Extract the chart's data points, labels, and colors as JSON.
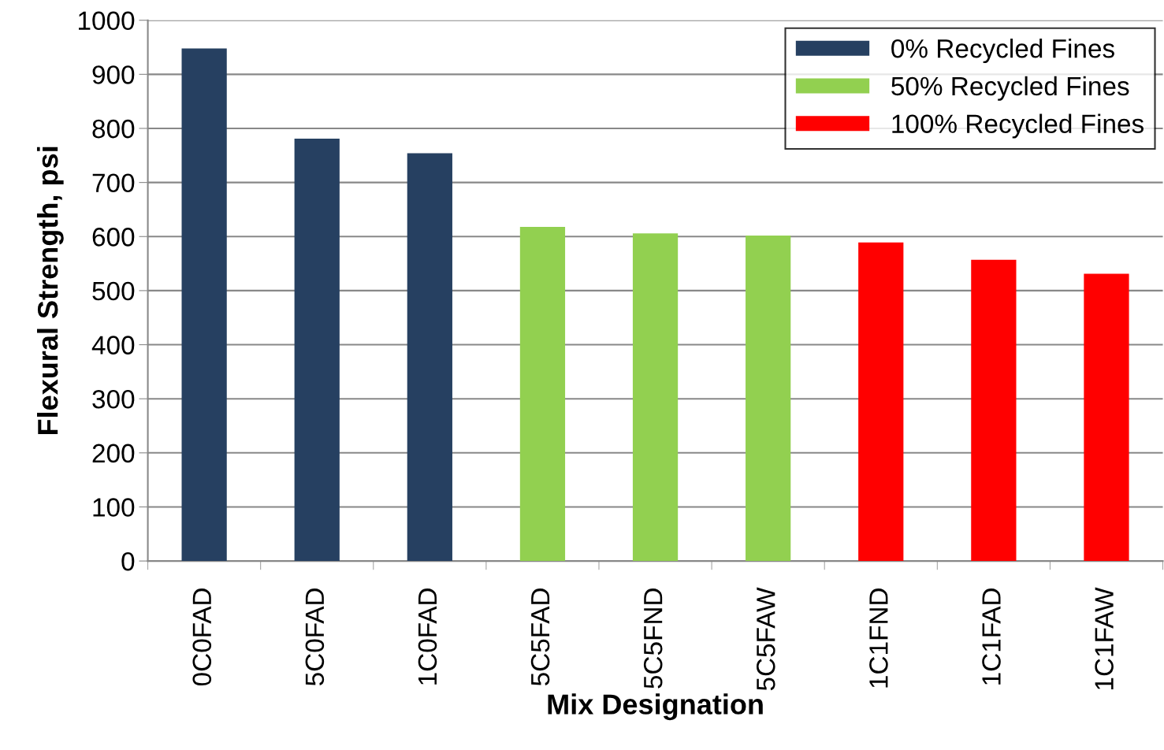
{
  "chart_data": {
    "type": "bar",
    "xlabel": "Mix Designation",
    "ylabel": "Flexural Strength, psi",
    "categories": [
      "0C0FAD",
      "5C0FAD",
      "1C0FAD",
      "5C5FAD",
      "5C5FND",
      "5C5FAW",
      "1C1FND",
      "1C1FAD",
      "1C1FAW"
    ],
    "series": [
      {
        "name": "0% Recycled Fines",
        "color": "#264061",
        "values": [
          948,
          781,
          754,
          null,
          null,
          null,
          null,
          null,
          null
        ]
      },
      {
        "name": "50% Recycled Fines",
        "color": "#92d050",
        "values": [
          null,
          null,
          null,
          618,
          606,
          602,
          null,
          null,
          null
        ]
      },
      {
        "name": "100% Recycled Fines",
        "color": "#ff0000",
        "values": [
          null,
          null,
          null,
          null,
          null,
          null,
          589,
          557,
          531
        ]
      }
    ],
    "ylim": [
      0,
      1000
    ],
    "yticks": [
      0,
      100,
      200,
      300,
      400,
      500,
      600,
      700,
      800,
      900,
      1000
    ],
    "grid": "y",
    "legend": "top right"
  }
}
